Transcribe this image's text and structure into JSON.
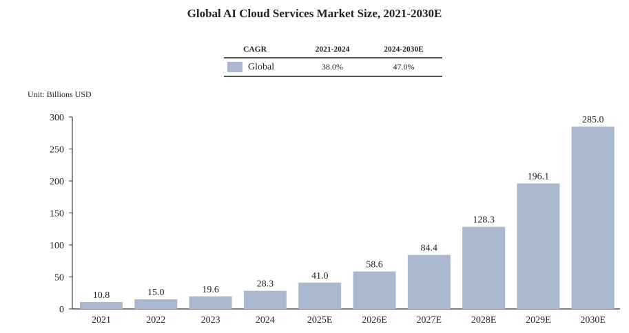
{
  "title": "Global AI Cloud Services Market Size, 2021-2030E",
  "cagr_table": {
    "headers": [
      "CAGR",
      "2021-2024",
      "2024-2030E"
    ],
    "rows": [
      {
        "label": "Global",
        "values": [
          "38.0%",
          "47.0%"
        ],
        "color": "#a9b8cf"
      }
    ]
  },
  "unit_label": "Unit: Billions  USD",
  "chart_data": {
    "type": "bar",
    "title": "Global AI Cloud Services Market Size, 2021-2030E",
    "categories": [
      "2021",
      "2022",
      "2023",
      "2024",
      "2025E",
      "2026E",
      "2027E",
      "2028E",
      "2029E",
      "2030E"
    ],
    "values": [
      10.8,
      15.0,
      19.6,
      28.3,
      41.0,
      58.6,
      84.4,
      128.3,
      196.1,
      285.0
    ],
    "value_labels": [
      "10.8",
      "15.0",
      "19.6",
      "28.3",
      "41.0",
      "58.6",
      "84.4",
      "128.3",
      "196.1",
      "285.0"
    ],
    "ylim": [
      0,
      300
    ],
    "yticks": [
      0,
      50,
      100,
      150,
      200,
      250,
      300
    ],
    "ylabel": "Unit: Billions  USD",
    "xlabel": "",
    "grid": false,
    "bar_color": "#a9b8cf"
  }
}
